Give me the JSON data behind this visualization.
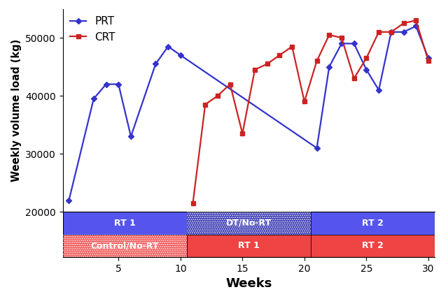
{
  "prt_x": [
    1,
    3,
    4,
    5,
    6,
    8,
    9,
    10,
    21,
    22,
    23,
    24,
    25,
    26,
    27,
    28,
    29,
    30
  ],
  "prt_y": [
    22000,
    39500,
    42000,
    42000,
    33000,
    45500,
    48500,
    47000,
    31000,
    45000,
    49000,
    49000,
    44500,
    41000,
    51000,
    51000,
    52000,
    46500
  ],
  "crt_x": [
    11,
    12,
    13,
    14,
    15,
    16,
    17,
    18,
    19,
    20,
    21,
    22,
    23,
    24,
    25,
    26,
    27,
    28,
    29,
    30
  ],
  "crt_y": [
    21500,
    38500,
    40000,
    42000,
    33500,
    44500,
    45500,
    47000,
    48500,
    39000,
    46000,
    50500,
    50000,
    43000,
    46500,
    51000,
    51000,
    52500,
    53000,
    46000
  ],
  "prt_color": "#3333cc",
  "crt_color": "#cc2222",
  "ylabel": "Weekly volume load (kg)",
  "xlabel": "Weeks",
  "ylim": [
    20000,
    55000
  ],
  "xlim": [
    0.5,
    30.5
  ],
  "xticks": [
    0,
    5,
    10,
    15,
    20,
    25,
    30
  ],
  "yticks": [
    20000,
    30000,
    40000,
    50000
  ],
  "bar_blue_color": "#5555ee",
  "bar_red_color": "#ee4444",
  "bar_darkblue_color": "#2222aa",
  "phase1_end": 10.5,
  "phase2_end": 20.5,
  "phase3_end": 30.5,
  "phase_start": 0.5,
  "top_row_labels": [
    "RT 1",
    "DT/No-RT",
    "RT 2"
  ],
  "bot_row_labels": [
    "Control/No-RT",
    "RT 1",
    "RT 2"
  ]
}
